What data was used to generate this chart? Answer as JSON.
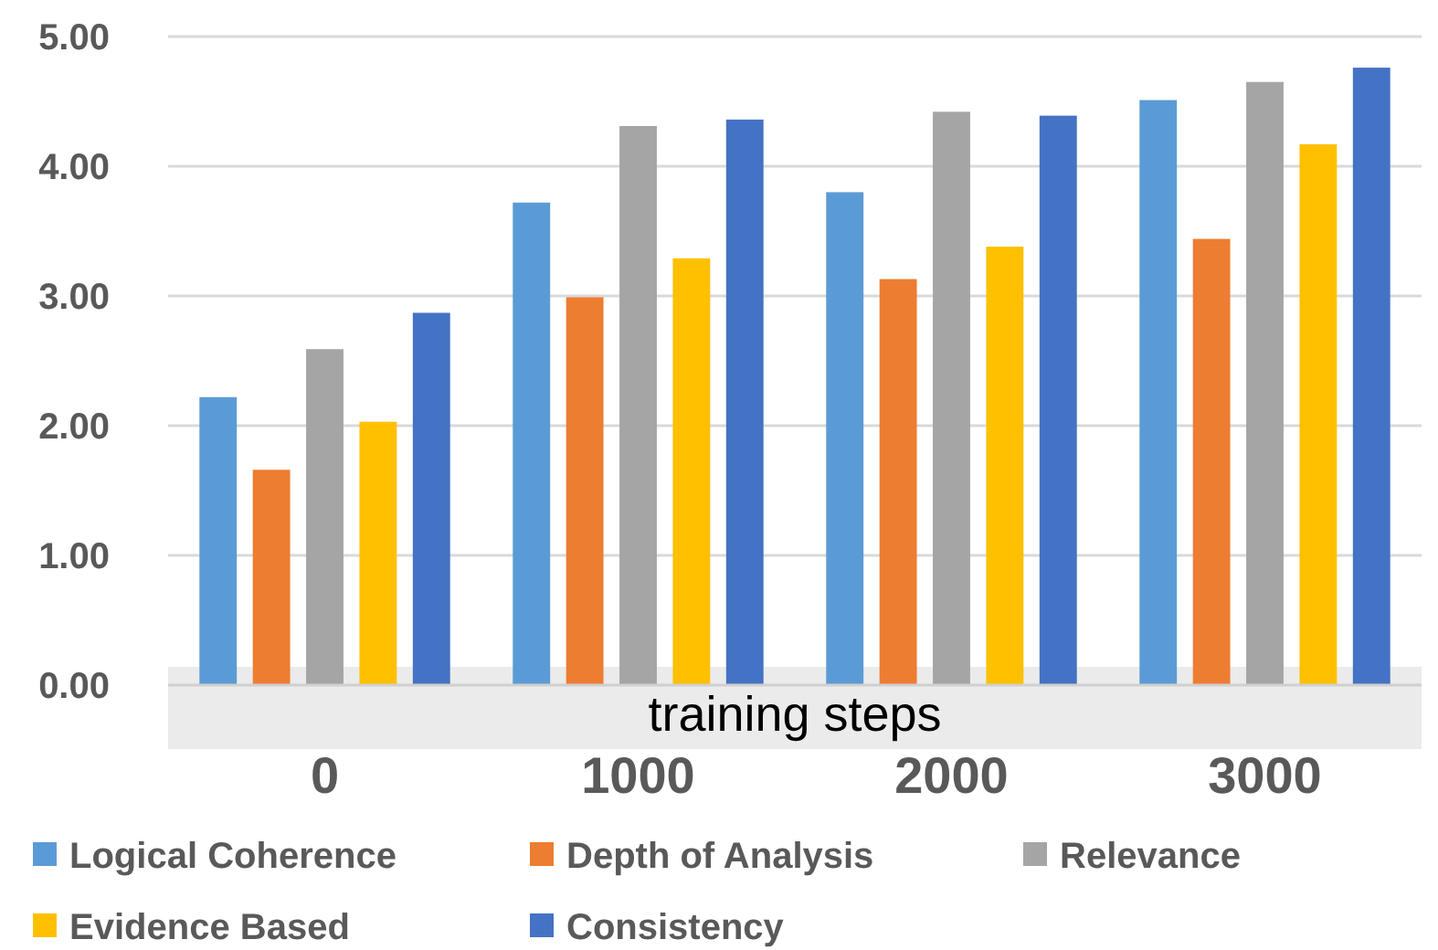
{
  "chart_data": {
    "type": "bar",
    "xlabel": "training steps",
    "categories": [
      "0",
      "1000",
      "2000",
      "3000"
    ],
    "series": [
      {
        "name": "Logical Coherence",
        "color": "#5b9bd5",
        "values": [
          2.22,
          3.72,
          3.8,
          4.51
        ]
      },
      {
        "name": "Depth of Analysis",
        "color": "#ed7d31",
        "values": [
          1.66,
          2.99,
          3.13,
          3.44
        ]
      },
      {
        "name": "Relevance",
        "color": "#a5a5a5",
        "values": [
          2.59,
          4.31,
          4.42,
          4.65
        ]
      },
      {
        "name": "Evidence Based",
        "color": "#ffc000",
        "values": [
          2.03,
          3.29,
          3.38,
          4.17
        ]
      },
      {
        "name": "Consistency",
        "color": "#4472c4",
        "values": [
          2.87,
          4.36,
          4.39,
          4.76
        ]
      }
    ],
    "ylim": [
      0,
      5
    ],
    "yticks": [
      {
        "value": 0,
        "label": "0.00"
      },
      {
        "value": 1,
        "label": "1.00"
      },
      {
        "value": 2,
        "label": "2.00"
      },
      {
        "value": 3,
        "label": "3.00"
      },
      {
        "value": 4,
        "label": "4.00"
      },
      {
        "value": 5,
        "label": "5.00"
      }
    ],
    "grid": "y",
    "legend": "bottom"
  }
}
